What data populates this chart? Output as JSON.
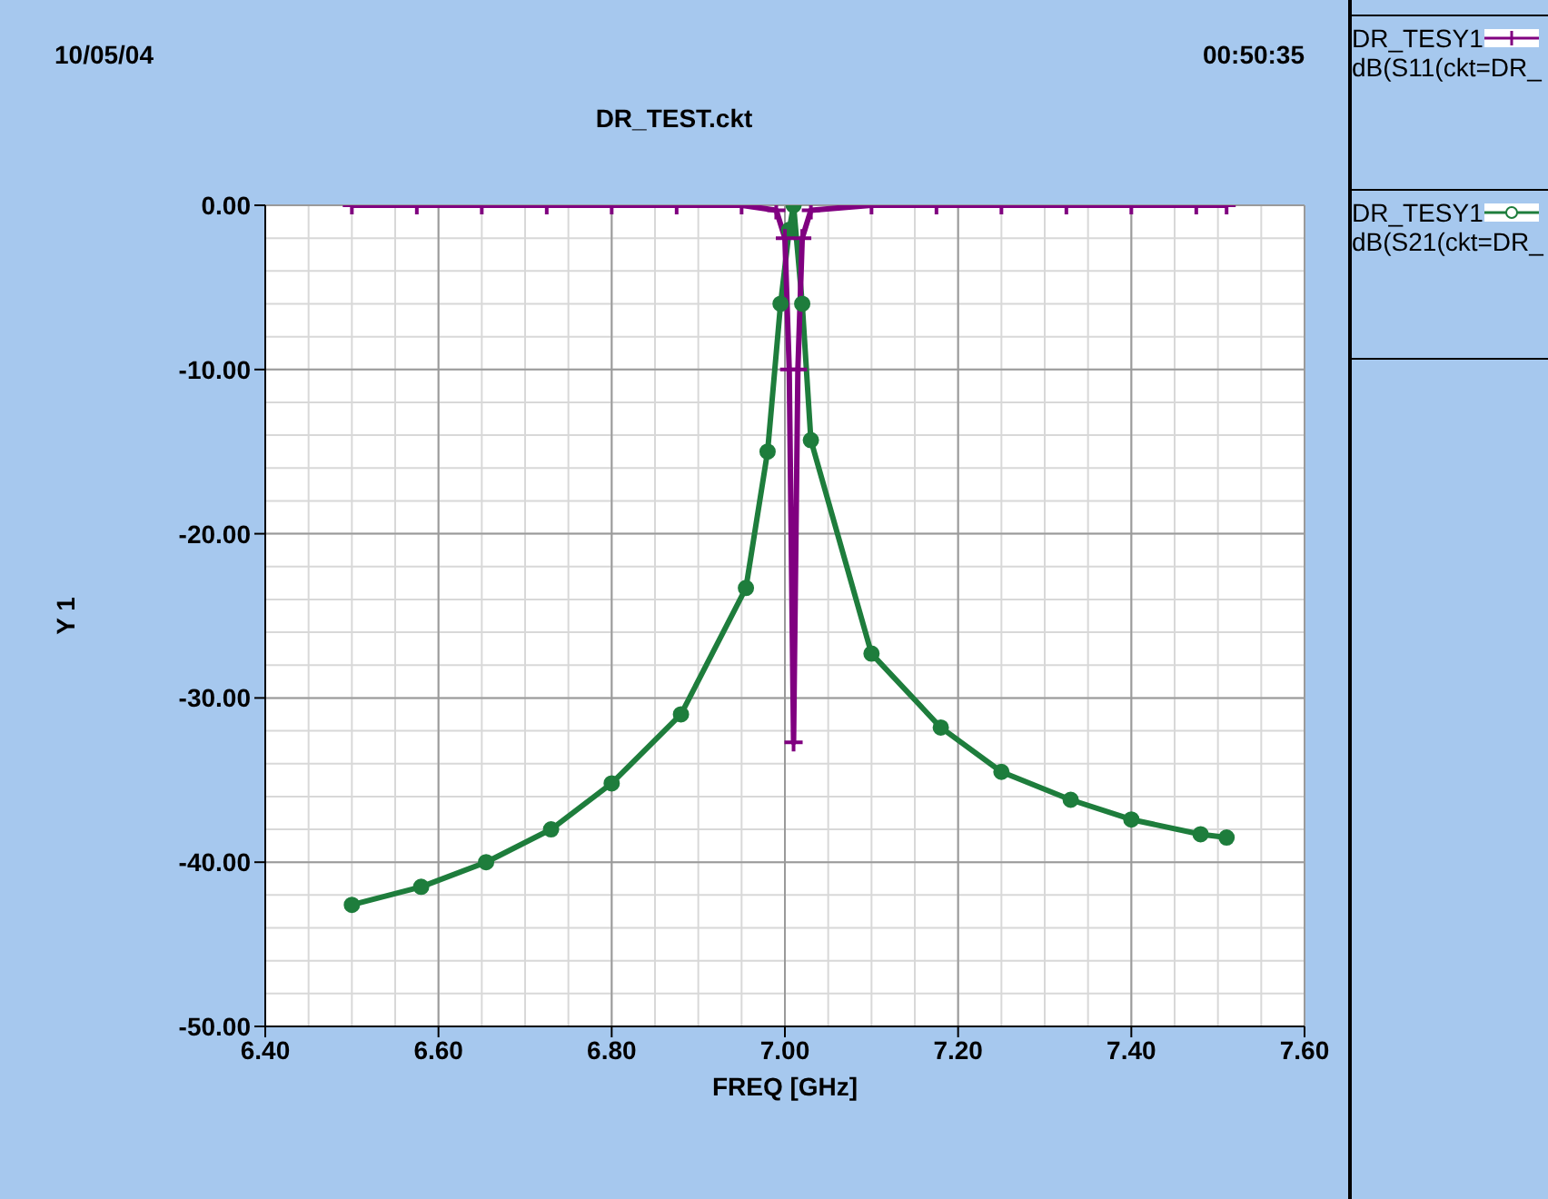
{
  "chart_data": {
    "type": "line",
    "title": "DR_TEST.ckt",
    "xlabel": "FREQ [GHz]",
    "ylabel": "Y 1",
    "annotations": [
      "10/05/04",
      "00:50:35"
    ],
    "xlim": [
      6.4,
      7.6
    ],
    "xticks": [
      {
        "value": 6.4,
        "label": "6.40"
      },
      {
        "value": 6.6,
        "label": "6.60"
      },
      {
        "value": 6.8,
        "label": "6.80"
      },
      {
        "value": 7.0,
        "label": "7.00"
      },
      {
        "value": 7.2,
        "label": "7.20"
      },
      {
        "value": 7.4,
        "label": "7.40"
      },
      {
        "value": 7.6,
        "label": "7.60"
      }
    ],
    "ylim": [
      -50,
      0
    ],
    "yticks": [
      {
        "value": -50,
        "label": "-50.00"
      },
      {
        "value": -40,
        "label": "-40.00"
      },
      {
        "value": -30,
        "label": "-30.00"
      },
      {
        "value": -20,
        "label": "-20.00"
      },
      {
        "value": -10,
        "label": "-10.00"
      },
      {
        "value": 0,
        "label": "0.00"
      }
    ],
    "grid": true,
    "legend": "right",
    "series": [
      {
        "name": "DR_TESY1\ndB(S11(ckt=DR_",
        "color": "#800080",
        "marker": "cross",
        "x": [
          6.5,
          6.575,
          6.65,
          6.725,
          6.8,
          6.875,
          6.95,
          6.99,
          7.0,
          7.005,
          7.01,
          7.015,
          7.02,
          7.03,
          7.1,
          7.175,
          7.25,
          7.325,
          7.4,
          7.475,
          7.51
        ],
        "values": [
          0,
          0,
          0,
          0,
          0,
          0,
          0,
          -0.3,
          -2,
          -10,
          -32.7,
          -10,
          -2,
          -0.3,
          0,
          0,
          0,
          0,
          0,
          0,
          0
        ]
      },
      {
        "name": "DR_TESY1\ndB(S21(ckt=DR_",
        "color": "#1e7d3c",
        "marker": "circle",
        "x": [
          6.5,
          6.58,
          6.655,
          6.73,
          6.8,
          6.88,
          6.955,
          6.98,
          6.995,
          7.005,
          7.01,
          7.02,
          7.03,
          7.1,
          7.18,
          7.25,
          7.33,
          7.4,
          7.48,
          7.51
        ],
        "values": [
          -42.6,
          -41.5,
          -40,
          -38,
          -35.2,
          -31,
          -23.3,
          -15,
          -6,
          -1.5,
          0,
          -6,
          -14.3,
          -27.3,
          -31.8,
          -34.5,
          -36.2,
          -37.4,
          -38.3,
          -38.5
        ]
      }
    ]
  }
}
